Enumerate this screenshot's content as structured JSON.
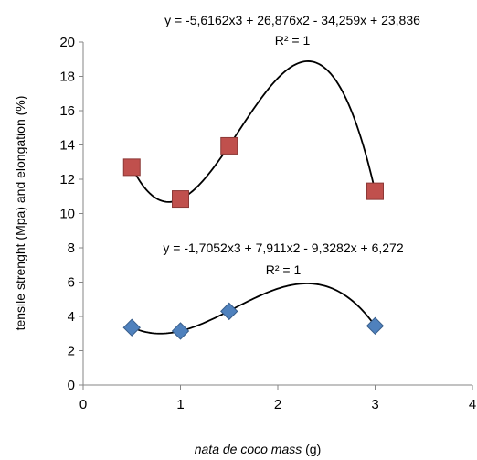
{
  "chart_data": {
    "type": "scatter",
    "xlabel_italic": "nata de coco mass",
    "xlabel_unit": " (g)",
    "ylabel": "tensile strenght (Mpa) and elongation  (%)",
    "xlim": [
      0,
      4
    ],
    "ylim": [
      0,
      20
    ],
    "x_ticks": [
      "0",
      "1",
      "2",
      "3",
      "4"
    ],
    "y_ticks": [
      "0",
      "2",
      "4",
      "6",
      "8",
      "10",
      "12",
      "14",
      "16",
      "18",
      "20"
    ],
    "grid": false,
    "legend": "none",
    "series": [
      {
        "marker": "square",
        "color": "#C0504D",
        "points": [
          [
            0.5,
            12.7
          ],
          [
            1.0,
            10.85
          ],
          [
            1.5,
            13.95
          ],
          [
            3.0,
            11.3
          ]
        ],
        "trendline": {
          "type": "polynomial-3",
          "coefficients": [
            -5.6162,
            26.876,
            -34.259,
            23.836
          ],
          "equation": "y = -5,6162x3 + 26,876x2 - 34,259x + 23,836",
          "r2": "R² = 1"
        }
      },
      {
        "marker": "diamond",
        "color": "#4F81BD",
        "points": [
          [
            0.5,
            3.35
          ],
          [
            1.0,
            3.15
          ],
          [
            1.5,
            4.3
          ],
          [
            3.0,
            3.45
          ]
        ],
        "trendline": {
          "type": "polynomial-3",
          "coefficients": [
            -1.7052,
            7.911,
            -9.3282,
            6.272
          ],
          "equation": "y = -1,7052x3 + 7,911x2 - 9,3282x + 6,272",
          "r2": "R² = 1"
        }
      }
    ]
  }
}
